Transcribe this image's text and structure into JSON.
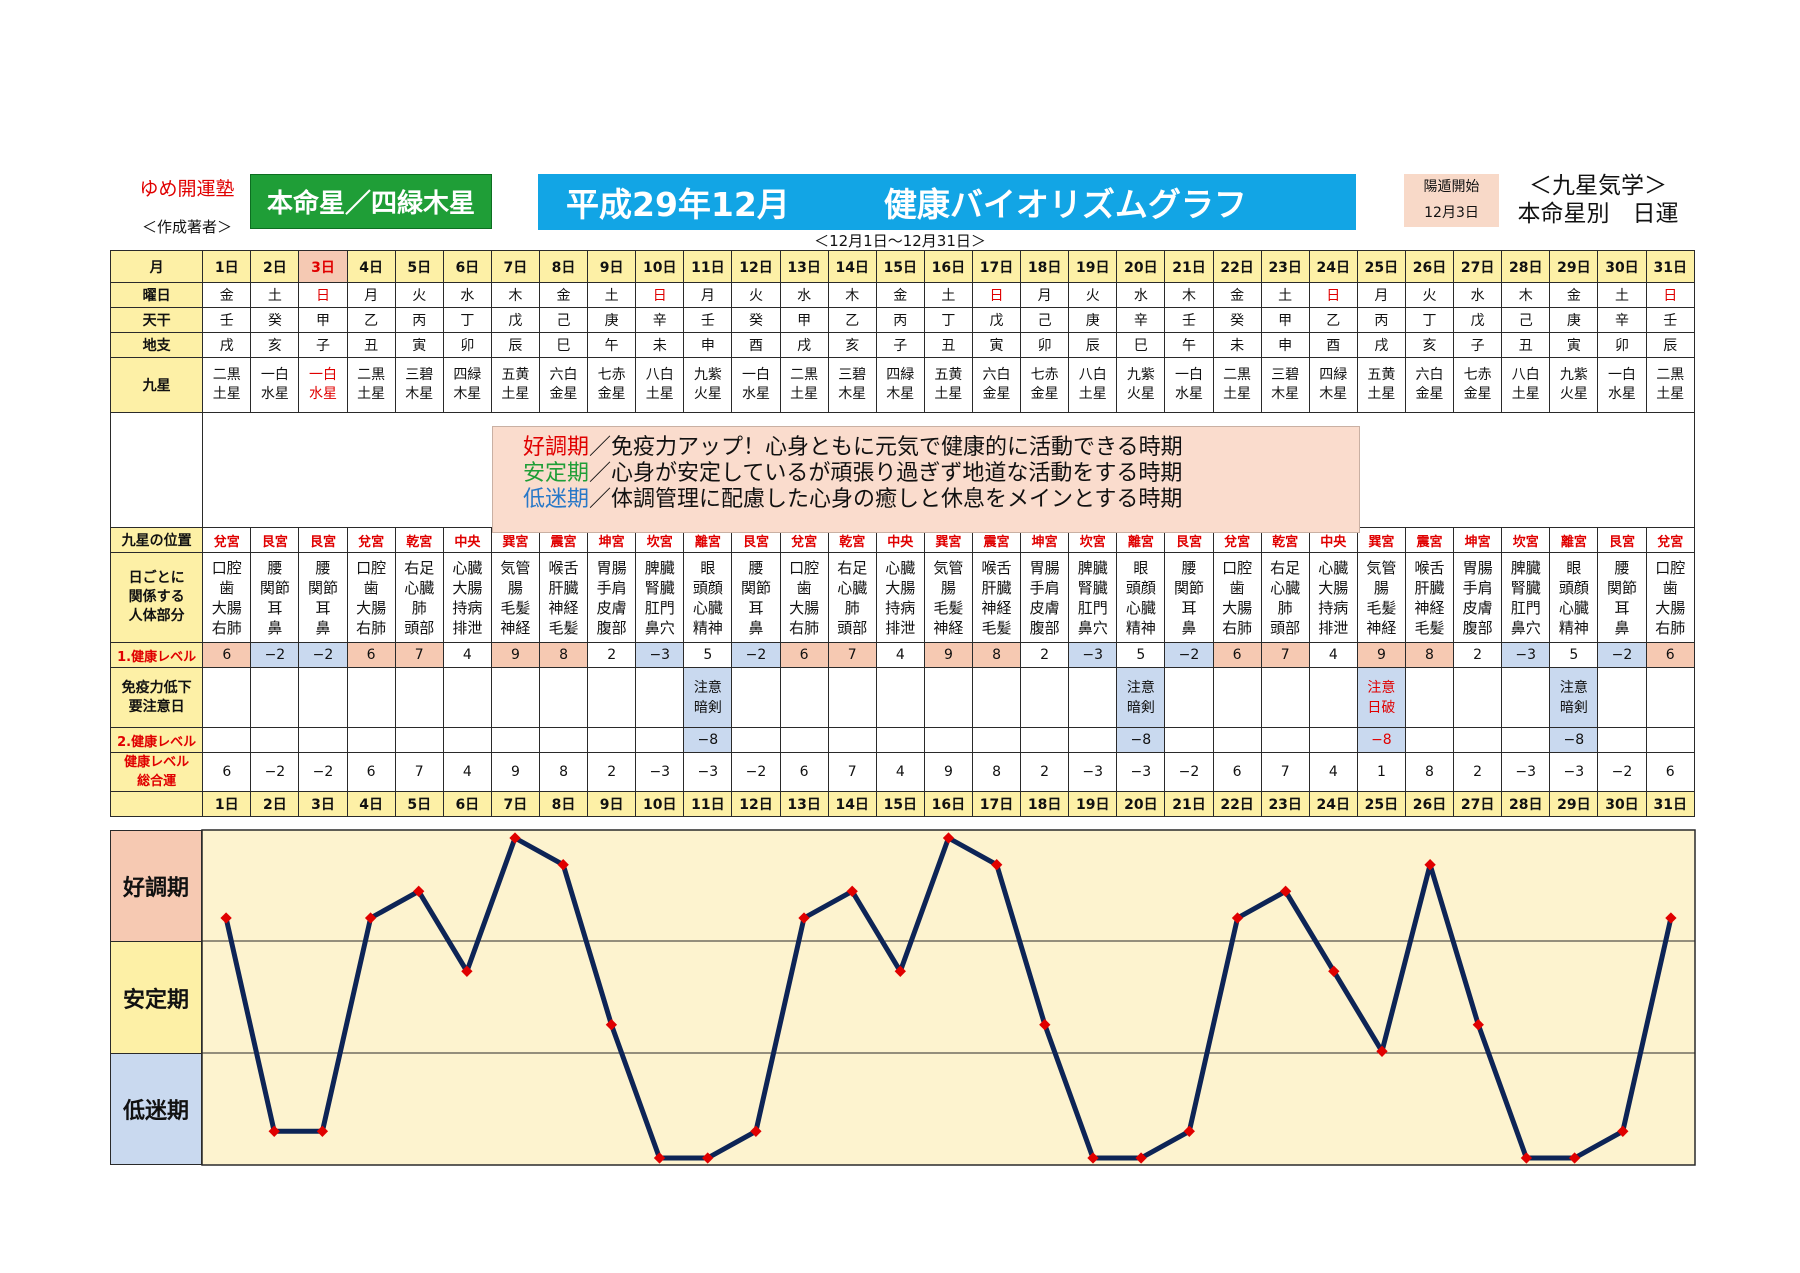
{
  "header": {
    "school": "ゆめ開運塾",
    "author": "＜作成著者＞",
    "star": "本命星／四緑木星",
    "title_year": "平成29年12月",
    "title_name": "健康バイオリズムグラフ",
    "yang_label": "陽遁開始",
    "yang_date": "12月3日",
    "right_line1": "＜九星気学＞",
    "right_line2": "本命星別　日運",
    "range": "＜12月1日～12月31日＞"
  },
  "row_labels": {
    "month": "月",
    "weekday": "曜日",
    "stem": "天干",
    "branch": "地支",
    "nine_star": "九星",
    "palace": "九星の位置",
    "body_l1": "日ごとに",
    "body_l2": "関係する",
    "body_l3": "人体部分",
    "level1": "1.健康レベル",
    "caution_l1": "免疫力低下",
    "caution_l2": "要注意日",
    "level2": "2.健康レベル",
    "total_l1": "健康レベル",
    "total_l2": "総合運"
  },
  "legend": {
    "good_term": "好調期",
    "good_text": "／免疫力アップ！心身ともに元気で健康的に活動できる時期",
    "stable_term": "安定期",
    "stable_text": "／心身が安定しているが頑張り過ぎず地道な活動をする時期",
    "low_term": "低迷期",
    "low_text": "／体調管理に配慮した心身の癒しと休息をメインとする時期"
  },
  "phases": {
    "good": "好調期",
    "stable": "安定期",
    "low": "低迷期"
  },
  "days": [
    "1日",
    "2日",
    "3日",
    "4日",
    "5日",
    "6日",
    "7日",
    "8日",
    "9日",
    "10日",
    "11日",
    "12日",
    "13日",
    "14日",
    "15日",
    "16日",
    "17日",
    "18日",
    "19日",
    "20日",
    "21日",
    "22日",
    "23日",
    "24日",
    "25日",
    "26日",
    "27日",
    "28日",
    "29日",
    "30日",
    "31日"
  ],
  "weekdays": [
    "金",
    "土",
    "日",
    "月",
    "火",
    "水",
    "木",
    "金",
    "土",
    "日",
    "月",
    "火",
    "水",
    "木",
    "金",
    "土",
    "日",
    "月",
    "火",
    "水",
    "木",
    "金",
    "土",
    "日",
    "月",
    "火",
    "水",
    "木",
    "金",
    "土",
    "日"
  ],
  "stems": [
    "壬",
    "癸",
    "甲",
    "乙",
    "丙",
    "丁",
    "戊",
    "己",
    "庚",
    "辛",
    "壬",
    "癸",
    "甲",
    "乙",
    "丙",
    "丁",
    "戊",
    "己",
    "庚",
    "辛",
    "壬",
    "癸",
    "甲",
    "乙",
    "丙",
    "丁",
    "戊",
    "己",
    "庚",
    "辛",
    "壬"
  ],
  "branches": [
    "戌",
    "亥",
    "子",
    "丑",
    "寅",
    "卯",
    "辰",
    "巳",
    "午",
    "未",
    "申",
    "酉",
    "戌",
    "亥",
    "子",
    "丑",
    "寅",
    "卯",
    "辰",
    "巳",
    "午",
    "未",
    "申",
    "酉",
    "戌",
    "亥",
    "子",
    "丑",
    "寅",
    "卯",
    "辰"
  ],
  "nine_stars": [
    [
      "二黒",
      "土星"
    ],
    [
      "一白",
      "水星"
    ],
    [
      "一白",
      "水星"
    ],
    [
      "二黒",
      "土星"
    ],
    [
      "三碧",
      "木星"
    ],
    [
      "四緑",
      "木星"
    ],
    [
      "五黄",
      "土星"
    ],
    [
      "六白",
      "金星"
    ],
    [
      "七赤",
      "金星"
    ],
    [
      "八白",
      "土星"
    ],
    [
      "九紫",
      "火星"
    ],
    [
      "一白",
      "水星"
    ],
    [
      "二黒",
      "土星"
    ],
    [
      "三碧",
      "木星"
    ],
    [
      "四緑",
      "木星"
    ],
    [
      "五黄",
      "土星"
    ],
    [
      "六白",
      "金星"
    ],
    [
      "七赤",
      "金星"
    ],
    [
      "八白",
      "土星"
    ],
    [
      "九紫",
      "火星"
    ],
    [
      "一白",
      "水星"
    ],
    [
      "二黒",
      "土星"
    ],
    [
      "三碧",
      "木星"
    ],
    [
      "四緑",
      "木星"
    ],
    [
      "五黄",
      "土星"
    ],
    [
      "六白",
      "金星"
    ],
    [
      "七赤",
      "金星"
    ],
    [
      "八白",
      "土星"
    ],
    [
      "九紫",
      "火星"
    ],
    [
      "一白",
      "水星"
    ],
    [
      "二黒",
      "土星"
    ]
  ],
  "palaces": [
    "兌宮",
    "艮宮",
    "艮宮",
    "兌宮",
    "乾宮",
    "中央",
    "巽宮",
    "震宮",
    "坤宮",
    "坎宮",
    "離宮",
    "艮宮",
    "兌宮",
    "乾宮",
    "中央",
    "巽宮",
    "震宮",
    "坤宮",
    "坎宮",
    "離宮",
    "艮宮",
    "兌宮",
    "乾宮",
    "中央",
    "巽宮",
    "震宮",
    "坤宮",
    "坎宮",
    "離宮",
    "艮宮",
    "兌宮"
  ],
  "body_parts": [
    [
      "口腔",
      "歯",
      "大腸",
      "右肺"
    ],
    [
      "腰",
      "関節",
      "耳",
      "鼻"
    ],
    [
      "腰",
      "関節",
      "耳",
      "鼻"
    ],
    [
      "口腔",
      "歯",
      "大腸",
      "右肺"
    ],
    [
      "右足",
      "心臓",
      "肺",
      "頭部"
    ],
    [
      "心臓",
      "大腸",
      "持病",
      "排泄"
    ],
    [
      "気管",
      "腸",
      "毛髪",
      "神経"
    ],
    [
      "喉舌",
      "肝臓",
      "神経",
      "毛髪"
    ],
    [
      "胃腸",
      "手肩",
      "皮膚",
      "腹部"
    ],
    [
      "脾臓",
      "腎臓",
      "肛門",
      "鼻穴"
    ],
    [
      "眼",
      "頭顔",
      "心臓",
      "精神"
    ],
    [
      "腰",
      "関節",
      "耳",
      "鼻"
    ],
    [
      "口腔",
      "歯",
      "大腸",
      "右肺"
    ],
    [
      "右足",
      "心臓",
      "肺",
      "頭部"
    ],
    [
      "心臓",
      "大腸",
      "持病",
      "排泄"
    ],
    [
      "気管",
      "腸",
      "毛髪",
      "神経"
    ],
    [
      "喉舌",
      "肝臓",
      "神経",
      "毛髪"
    ],
    [
      "胃腸",
      "手肩",
      "皮膚",
      "腹部"
    ],
    [
      "脾臓",
      "腎臓",
      "肛門",
      "鼻穴"
    ],
    [
      "眼",
      "頭顔",
      "心臓",
      "精神"
    ],
    [
      "腰",
      "関節",
      "耳",
      "鼻"
    ],
    [
      "口腔",
      "歯",
      "大腸",
      "右肺"
    ],
    [
      "右足",
      "心臓",
      "肺",
      "頭部"
    ],
    [
      "心臓",
      "大腸",
      "持病",
      "排泄"
    ],
    [
      "気管",
      "腸",
      "毛髪",
      "神経"
    ],
    [
      "喉舌",
      "肝臓",
      "神経",
      "毛髪"
    ],
    [
      "胃腸",
      "手肩",
      "皮膚",
      "腹部"
    ],
    [
      "脾臓",
      "腎臓",
      "肛門",
      "鼻穴"
    ],
    [
      "眼",
      "頭顔",
      "心臓",
      "精神"
    ],
    [
      "腰",
      "関節",
      "耳",
      "鼻"
    ],
    [
      "口腔",
      "歯",
      "大腸",
      "右肺"
    ]
  ],
  "level1": [
    "6",
    "−2",
    "−2",
    "6",
    "7",
    "4",
    "9",
    "8",
    "2",
    "−3",
    "5",
    "−2",
    "6",
    "7",
    "4",
    "9",
    "8",
    "2",
    "−3",
    "5",
    "−2",
    "6",
    "7",
    "4",
    "9",
    "8",
    "2",
    "−3",
    "5",
    "−2",
    "6"
  ],
  "caution": [
    "",
    "",
    "",
    "",
    "",
    "",
    "",
    "",
    "",
    "",
    [
      "注意",
      "暗剣"
    ],
    "",
    "",
    "",
    "",
    "",
    "",
    "",
    "",
    [
      "注意",
      "暗剣"
    ],
    "",
    "",
    "",
    "",
    [
      "注意",
      "日破"
    ],
    "",
    "",
    "",
    [
      "注意",
      "暗剣"
    ],
    "",
    ""
  ],
  "level2": [
    "",
    "",
    "",
    "",
    "",
    "",
    "",
    "",
    "",
    "",
    "−8",
    "",
    "",
    "",
    "",
    "",
    "",
    "",
    "",
    "−8",
    "",
    "",
    "",
    "",
    "−8",
    "",
    "",
    "",
    "−8",
    "",
    ""
  ],
  "total": [
    "6",
    "−2",
    "−2",
    "6",
    "7",
    "4",
    "9",
    "8",
    "2",
    "−3",
    "−3",
    "−2",
    "6",
    "7",
    "4",
    "9",
    "8",
    "2",
    "−3",
    "−3",
    "−2",
    "6",
    "7",
    "4",
    "1",
    "8",
    "2",
    "−3",
    "−3",
    "−2",
    "6"
  ],
  "chart_data": {
    "type": "line",
    "x": [
      "1日",
      "2日",
      "3日",
      "4日",
      "5日",
      "6日",
      "7日",
      "8日",
      "9日",
      "10日",
      "11日",
      "12日",
      "13日",
      "14日",
      "15日",
      "16日",
      "17日",
      "18日",
      "19日",
      "20日",
      "21日",
      "22日",
      "23日",
      "24日",
      "25日",
      "26日",
      "27日",
      "28日",
      "29日",
      "30日",
      "31日"
    ],
    "values": [
      6,
      -2,
      -2,
      6,
      7,
      4,
      9,
      8,
      2,
      -3,
      -3,
      -2,
      6,
      7,
      4,
      9,
      8,
      2,
      -3,
      -3,
      -2,
      6,
      7,
      4,
      1,
      8,
      2,
      -3,
      -3,
      -2,
      6
    ],
    "ylim": [
      -4,
      10
    ],
    "bands": [
      "好調期",
      "安定期",
      "低迷期"
    ],
    "line_color": "#0d2456",
    "marker_color": "#e00000",
    "background": "#fdf3cf"
  }
}
